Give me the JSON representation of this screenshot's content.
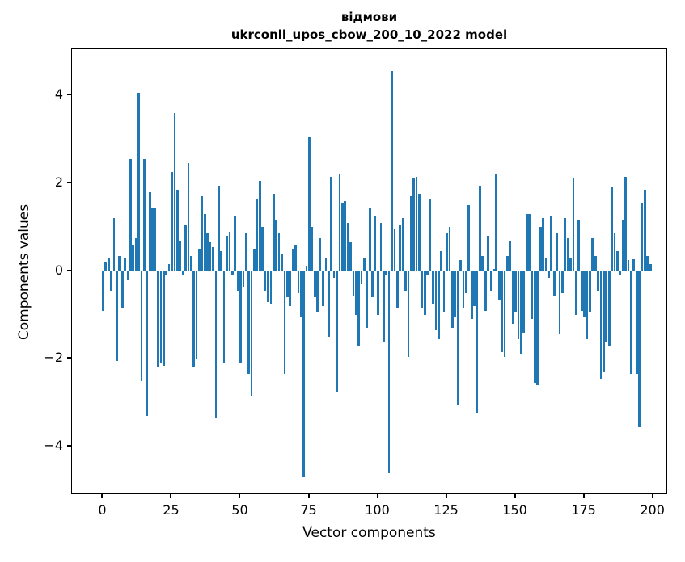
{
  "title": {
    "line1": "відмови",
    "line2": "ukrconll_upos_cbow_200_10_2022 model"
  },
  "chart_data": {
    "type": "bar",
    "title": "відмови — ukrconll_upos_cbow_200_10_2022 model",
    "xlabel": "Vector components",
    "ylabel": "Components values",
    "bar_color": "#1f77b4",
    "axis_color": "#000000",
    "background_color": "#ffffff",
    "legend": "none",
    "grid": false,
    "xlim": [
      -11.3,
      205.4
    ],
    "ylim": [
      -5.1,
      5.05
    ],
    "x_ticks": [
      0,
      25,
      50,
      75,
      100,
      125,
      150,
      175,
      200
    ],
    "y_ticks": [
      {
        "v": 4,
        "label": "4"
      },
      {
        "v": 2,
        "label": "2"
      },
      {
        "v": 0,
        "label": "0"
      },
      {
        "v": -2,
        "label": "−2"
      },
      {
        "v": -4,
        "label": "−4"
      }
    ],
    "categories_note": "x = vector component index 0..199",
    "values": [
      -0.9,
      0.2,
      0.3,
      -0.45,
      1.2,
      -2.05,
      0.35,
      -0.85,
      0.3,
      -0.2,
      2.55,
      0.6,
      0.75,
      4.05,
      -2.5,
      2.55,
      -3.3,
      1.8,
      1.45,
      1.45,
      -2.2,
      -2.1,
      -2.15,
      -0.1,
      0.15,
      2.25,
      3.6,
      1.85,
      0.7,
      -0.1,
      1.05,
      2.45,
      0.35,
      -2.2,
      -2.0,
      0.5,
      1.7,
      1.3,
      0.85,
      0.65,
      0.55,
      -3.35,
      1.95,
      0.45,
      -2.1,
      0.8,
      0.9,
      -0.1,
      1.25,
      -0.45,
      -2.1,
      -0.35,
      0.85,
      -2.35,
      -2.85,
      0.5,
      1.65,
      2.05,
      1.0,
      -0.45,
      -0.7,
      -0.75,
      1.75,
      1.15,
      0.85,
      0.4,
      -2.35,
      -0.6,
      -0.8,
      0.5,
      0.6,
      -0.5,
      -1.05,
      -4.7,
      0.1,
      3.05,
      1.0,
      -0.6,
      -0.95,
      0.75,
      -0.8,
      0.3,
      -1.5,
      2.15,
      -0.15,
      -2.75,
      2.2,
      1.55,
      1.6,
      1.1,
      0.65,
      -0.55,
      -1.0,
      -1.7,
      -0.3,
      0.3,
      -1.3,
      1.45,
      -0.6,
      1.25,
      -1.0,
      1.1,
      -1.6,
      -0.1,
      -4.6,
      4.55,
      0.95,
      -0.85,
      1.05,
      1.2,
      -0.45,
      -1.95,
      1.7,
      2.1,
      2.15,
      1.75,
      -0.85,
      -1.0,
      -0.1,
      1.65,
      -0.75,
      -1.35,
      -1.55,
      0.45,
      -0.95,
      0.85,
      1.0,
      -1.3,
      -1.05,
      -3.05,
      0.25,
      -0.85,
      -0.5,
      1.5,
      -1.1,
      -0.8,
      -3.25,
      1.95,
      0.35,
      -0.9,
      0.8,
      -0.45,
      0.05,
      2.2,
      -0.65,
      -1.85,
      -1.95,
      0.35,
      0.7,
      -1.2,
      -0.95,
      -1.55,
      -1.9,
      -1.4,
      1.3,
      1.3,
      -1.1,
      -2.55,
      -2.6,
      1.0,
      1.2,
      0.3,
      -0.15,
      1.25,
      -0.55,
      0.85,
      -1.45,
      -0.5,
      1.2,
      0.75,
      0.3,
      2.1,
      -1.0,
      1.15,
      -0.9,
      -1.05,
      -1.55,
      -0.95,
      0.75,
      0.35,
      -0.45,
      -2.45,
      -2.3,
      -1.6,
      -1.7,
      1.9,
      0.85,
      0.45,
      -0.1,
      1.15,
      2.15,
      0.25,
      -2.35,
      0.27,
      -2.35,
      -3.55,
      1.55,
      1.85,
      0.35,
      0.15
    ]
  }
}
